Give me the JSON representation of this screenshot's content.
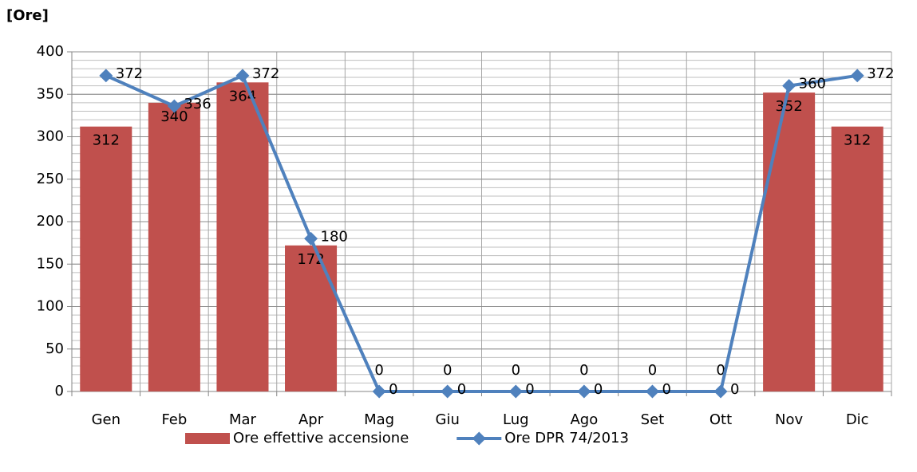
{
  "chart_data": {
    "type": "bar_line",
    "y_label": "[Ore]",
    "categories": [
      "Gen",
      "Feb",
      "Mar",
      "Apr",
      "Mag",
      "Giu",
      "Lug",
      "Ago",
      "Set",
      "Ott",
      "Nov",
      "Dic"
    ],
    "series": [
      {
        "name": "Ore effettive accensione",
        "type": "bar",
        "color": "#c0504d",
        "values": [
          312,
          340,
          364,
          172,
          0,
          0,
          0,
          0,
          0,
          0,
          352,
          312
        ]
      },
      {
        "name": "Ore DPR 74/2013",
        "type": "line",
        "color": "#4f81bd",
        "values": [
          372,
          336,
          372,
          180,
          0,
          0,
          0,
          0,
          0,
          0,
          360,
          372
        ]
      }
    ],
    "ylim": [
      0,
      400
    ],
    "yticks": [
      0,
      50,
      100,
      150,
      200,
      250,
      300,
      350,
      400
    ],
    "yminorticks": [
      0,
      10,
      20,
      30,
      40,
      50,
      60,
      70,
      80,
      90,
      100,
      110,
      120,
      130,
      140,
      150,
      160,
      170,
      180,
      190,
      200,
      210,
      220,
      230,
      240,
      250,
      260,
      270,
      280,
      290,
      300,
      310,
      320,
      330,
      340,
      350,
      360,
      370,
      380,
      390,
      400
    ],
    "grid": true,
    "legend": "bottom"
  }
}
